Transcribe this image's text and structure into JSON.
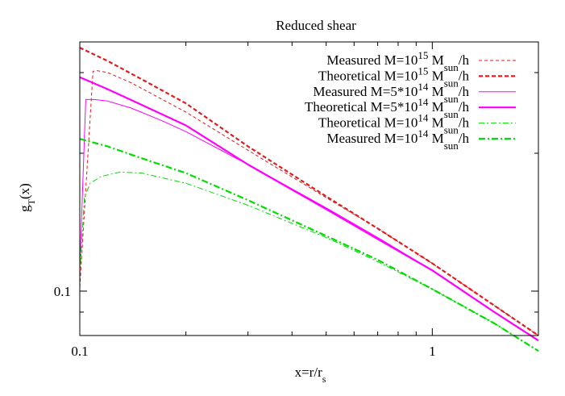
{
  "chart_data": {
    "type": "line",
    "title": "Reduced shear",
    "xlabel": {
      "main": "x=r/r",
      "sub": "s"
    },
    "ylabel": {
      "main": "g",
      "sub": "T",
      "tail": "(x)"
    },
    "x_scale": "log",
    "y_scale": "log",
    "xlim": [
      0.1,
      2
    ],
    "ylim": [
      0.08,
      0.35
    ],
    "x_ticks": [
      {
        "value": 0.1,
        "label": "0.1"
      },
      {
        "value": 1,
        "label": "1"
      }
    ],
    "y_ticks": [
      {
        "value": 0.1,
        "label": "0.1"
      }
    ],
    "grid": false,
    "legend_position": "top-right",
    "colors": {
      "red": "#e41a1c",
      "magenta": "#ff00ff",
      "green": "#00dd00"
    },
    "series": [
      {
        "name": "Measured M=10^15 Msun/h",
        "legend": {
          "pre": "Measured M=10",
          "sup": "15",
          "mid": " M",
          "sub": "sun",
          "post": "/h"
        },
        "color": "#e41a1c",
        "style": "dashed",
        "width": 1,
        "x": [
          0.1,
          0.109,
          0.112,
          0.12,
          0.14,
          0.17,
          0.2,
          0.3,
          0.5,
          0.7,
          1.0,
          1.5,
          2.0
        ],
        "y": [
          0.102,
          0.302,
          0.303,
          0.3,
          0.285,
          0.263,
          0.246,
          0.203,
          0.16,
          0.137,
          0.115,
          0.093,
          0.08
        ]
      },
      {
        "name": "Theoretical M=10^15 Msun/h",
        "legend": {
          "pre": "Theoretical M=10",
          "sup": "15",
          "mid": " M",
          "sub": "sun",
          "post": "/h"
        },
        "color": "#e41a1c",
        "style": "dashed",
        "width": 2.2,
        "x": [
          0.1,
          0.12,
          0.15,
          0.2,
          0.3,
          0.5,
          0.7,
          1.0,
          1.5,
          2.0
        ],
        "y": [
          0.34,
          0.318,
          0.29,
          0.257,
          0.207,
          0.161,
          0.137,
          0.115,
          0.093,
          0.08
        ]
      },
      {
        "name": "Measured M=5*10^14 Msun/h",
        "legend": {
          "pre": "Measured M=5*10",
          "sup": "14",
          "mid": " M",
          "sub": "sun",
          "post": "/h"
        },
        "color": "#ff00ff",
        "style": "solid",
        "width": 1,
        "x": [
          0.1,
          0.104,
          0.106,
          0.11,
          0.12,
          0.14,
          0.17,
          0.2,
          0.3,
          0.5,
          0.7,
          1.0,
          1.5,
          2.0
        ],
        "y": [
          0.112,
          0.262,
          0.262,
          0.262,
          0.26,
          0.251,
          0.236,
          0.223,
          0.189,
          0.152,
          0.131,
          0.111,
          0.09,
          0.078
        ]
      },
      {
        "name": "Theoretical M=5*10^14 Msun/h",
        "legend": {
          "pre": "Theoretical M=5*10",
          "sup": "14",
          "mid": " M",
          "sub": "sun",
          "post": "/h"
        },
        "color": "#ff00ff",
        "style": "solid",
        "width": 2.2,
        "x": [
          0.1,
          0.12,
          0.15,
          0.2,
          0.3,
          0.5,
          0.7,
          1.0,
          1.5,
          2.0
        ],
        "y": [
          0.293,
          0.276,
          0.255,
          0.23,
          0.189,
          0.151,
          0.13,
          0.111,
          0.09,
          0.078
        ]
      },
      {
        "name": "Theoretical M=10^14 Msun/h",
        "legend": {
          "pre": "Theoretical M=10",
          "sup": "14",
          "mid": " M",
          "sub": "sun",
          "post": "/h"
        },
        "color": "#00dd00",
        "style": "dashdot",
        "width": 1,
        "x": [
          0.1,
          0.103,
          0.107,
          0.115,
          0.13,
          0.15,
          0.2,
          0.3,
          0.5,
          0.7,
          1.0,
          1.5,
          2.0
        ],
        "y": [
          0.108,
          0.16,
          0.172,
          0.178,
          0.182,
          0.181,
          0.172,
          0.154,
          0.131,
          0.116,
          0.101,
          0.085,
          0.074
        ]
      },
      {
        "name": "Measured M=10^14 Msun/h",
        "legend": {
          "pre": "Measured M=10",
          "sup": "14",
          "mid": " M",
          "sub": "sun",
          "post": "/h"
        },
        "color": "#00dd00",
        "style": "dashdot",
        "width": 2.2,
        "x": [
          0.1,
          0.12,
          0.15,
          0.2,
          0.3,
          0.5,
          0.7,
          1.0,
          1.5,
          2.0
        ],
        "y": [
          0.215,
          0.207,
          0.195,
          0.181,
          0.158,
          0.132,
          0.117,
          0.101,
          0.085,
          0.074
        ]
      }
    ]
  }
}
